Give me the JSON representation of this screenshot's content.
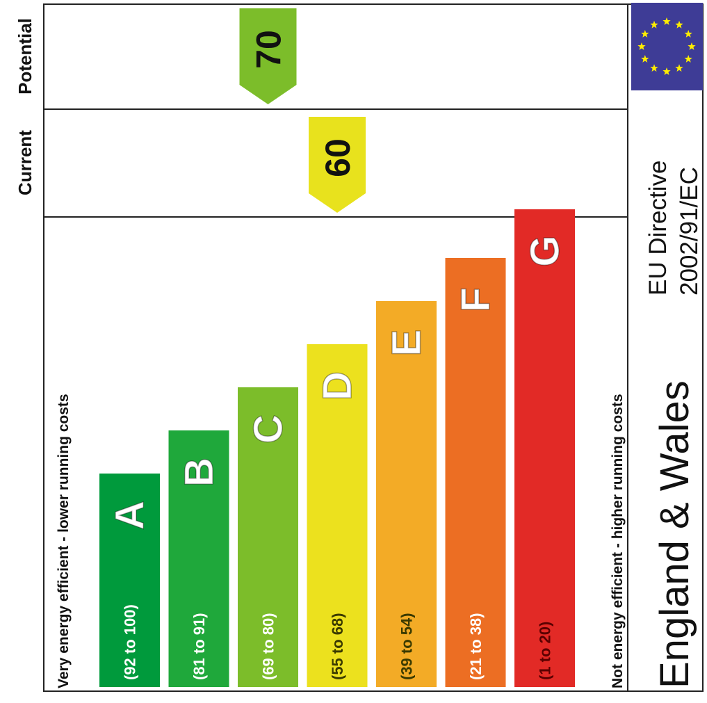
{
  "header": {
    "potential": "Potential",
    "current": "Current"
  },
  "chart_data": {
    "type": "bar",
    "top_note": "Very energy efficient - lower running costs",
    "bottom_note": "Not energy efficient - higher running costs",
    "bands": [
      {
        "letter": "A",
        "range": "(92 to 100)",
        "min": 92,
        "max": 100,
        "color": "#009a3c"
      },
      {
        "letter": "B",
        "range": "(81 to 91)",
        "min": 81,
        "max": 91,
        "color": "#1fa83b"
      },
      {
        "letter": "C",
        "range": "(69 to 80)",
        "min": 69,
        "max": 80,
        "color": "#7cbd2a"
      },
      {
        "letter": "D",
        "range": "(55 to 68)",
        "min": 55,
        "max": 68,
        "color": "#ece11e"
      },
      {
        "letter": "E",
        "range": "(39 to 54)",
        "min": 39,
        "max": 54,
        "color": "#f3ab26"
      },
      {
        "letter": "F",
        "range": "(21 to 38)",
        "min": 21,
        "max": 38,
        "color": "#ec6e23"
      },
      {
        "letter": "G",
        "range": "(1 to 20)",
        "min": 1,
        "max": 20,
        "color": "#e22a26"
      }
    ],
    "current": {
      "value": 60,
      "label": "60",
      "color": "#e8e21d"
    },
    "potential": {
      "value": 70,
      "label": "70",
      "color": "#7cbd2a"
    }
  },
  "footer": {
    "region": "England & Wales",
    "directive_line1": "EU Directive",
    "directive_line2": "2002/91/EC",
    "flag_color": "#3e3c96",
    "star_color": "#ffed00"
  }
}
